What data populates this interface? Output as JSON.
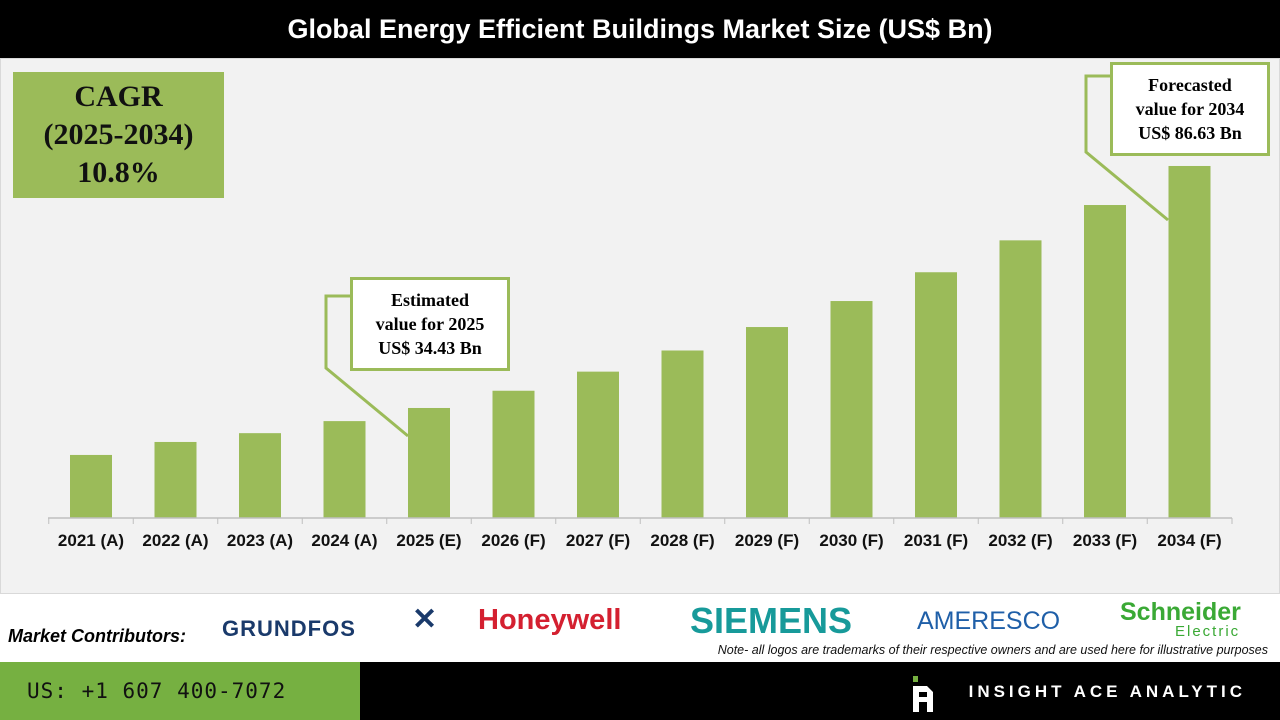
{
  "header": {
    "title": "Global Energy Efficient Buildings Market Size (US$ Bn)"
  },
  "cagr": {
    "line1": "CAGR",
    "line2": "(2025-2034)",
    "line3": "10.8%"
  },
  "callouts": {
    "estimated": {
      "line1": "Estimated",
      "line2": "value for 2025",
      "line3": "US$ 34.43 Bn"
    },
    "forecast": {
      "line1": "Forecasted",
      "line2": "value for 2034",
      "line3": "US$ 86.63 Bn"
    }
  },
  "chart_data": {
    "type": "bar",
    "title": "Global Energy Efficient Buildings Market Size (US$ Bn)",
    "categories": [
      "2021 (A)",
      "2022 (A)",
      "2023 (A)",
      "2024 (A)",
      "2025 (E)",
      "2026 (F)",
      "2027 (F)",
      "2028 (F)",
      "2029 (F)",
      "2030 (F)",
      "2031 (F)",
      "2032 (F)",
      "2033 (F)",
      "2034 (F)"
    ],
    "values": [
      24.3,
      27.1,
      29.0,
      31.6,
      34.43,
      38.15,
      42.27,
      46.83,
      51.89,
      57.5,
      63.71,
      70.59,
      78.21,
      86.63
    ],
    "xlabel": "",
    "ylabel": "",
    "grid": false,
    "legend": "none",
    "colors": {
      "bar": "#9bbb59"
    }
  },
  "footer": {
    "contributors_label": "Market Contributors:",
    "logos": [
      "GRUNDFOS",
      "Honeywell",
      "SIEMENS",
      "AMERESCO",
      "Schneider",
      "Electric"
    ],
    "note": "Note- all logos are trademarks of their respective owners and are used here for illustrative purposes",
    "phone": "US: +1 607 400-7072",
    "brand": "INSIGHT ACE ANALYTIC"
  }
}
